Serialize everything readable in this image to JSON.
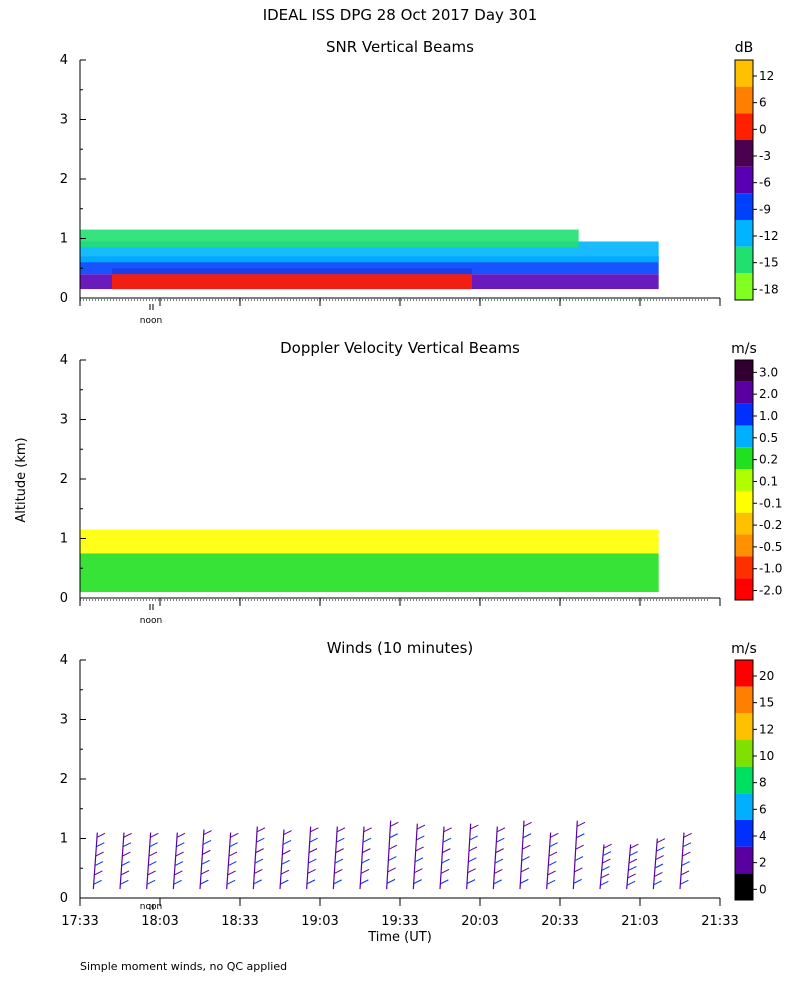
{
  "title": "IDEAL ISS DPG  28 Oct 2017 Day 301",
  "ylabel": "Altitude (km)",
  "xlabel": "Time (UT)",
  "footnote": "Simple moment winds, no QC applied",
  "noon_label": "noon",
  "chart_data": [
    {
      "type": "heatmap",
      "title": "SNR Vertical Beams",
      "unit": "dB",
      "y_ticks": [
        "0",
        "1",
        "2",
        "3",
        "4"
      ],
      "ylim": [
        0,
        4
      ],
      "colorbar": {
        "tick_labels": [
          "12",
          "6",
          "0",
          "-3",
          "-6",
          "-9",
          "-12",
          "-15",
          "-18"
        ],
        "colors": [
          "#ffc000",
          "#ff8000",
          "#ff2000",
          "#4b0050",
          "#5a00b4",
          "#0040ff",
          "#00b4ff",
          "#20e070",
          "#80ff20"
        ]
      },
      "regions": [
        {
          "t0": "17:33",
          "t1": "21:10",
          "alt0": 0.15,
          "alt1": 0.4,
          "value": "-6"
        },
        {
          "t0": "17:45",
          "t1": "20:00",
          "alt0": 0.15,
          "alt1": 0.5,
          "value": "0"
        },
        {
          "t0": "17:33",
          "t1": "21:10",
          "alt0": 0.4,
          "alt1": 0.7,
          "value": "-9"
        },
        {
          "t0": "17:33",
          "t1": "21:10",
          "alt0": 0.6,
          "alt1": 0.95,
          "value": "-12"
        },
        {
          "t0": "17:33",
          "t1": "20:40",
          "alt0": 0.85,
          "alt1": 1.15,
          "value": "-15"
        }
      ]
    },
    {
      "type": "heatmap",
      "title": "Doppler Velocity Vertical Beams",
      "unit": "m/s",
      "y_ticks": [
        "0",
        "1",
        "2",
        "3",
        "4"
      ],
      "ylim": [
        0,
        4
      ],
      "colorbar": {
        "tick_labels": [
          "3.0",
          "2.0",
          "1.0",
          "0.5",
          "0.2",
          "0.1",
          "-0.1",
          "-0.2",
          "-0.5",
          "-1.0",
          "-2.0"
        ],
        "colors": [
          "#300030",
          "#5a00a0",
          "#0030ff",
          "#00b0ff",
          "#20e020",
          "#b0ff00",
          "#ffff00",
          "#ffc000",
          "#ff9000",
          "#ff3000",
          "#ff0000"
        ]
      },
      "regions": [
        {
          "t0": "17:33",
          "t1": "21:10",
          "alt0": 0.1,
          "alt1": 0.75,
          "value": "0.2"
        },
        {
          "t0": "17:33",
          "t1": "21:10",
          "alt0": 0.75,
          "alt1": 1.15,
          "value": "-0.1"
        }
      ]
    },
    {
      "type": "barbs",
      "title": "Winds (10 minutes)",
      "unit": "m/s",
      "y_ticks": [
        "0",
        "1",
        "2",
        "3",
        "4"
      ],
      "ylim": [
        0,
        4
      ],
      "x_ticks": [
        "17:33",
        "18:03",
        "18:33",
        "19:03",
        "19:33",
        "20:03",
        "20:33",
        "21:03",
        "21:33"
      ],
      "colorbar": {
        "tick_labels": [
          "20",
          "15",
          "12",
          "10",
          "8",
          "6",
          "4",
          "2",
          "0"
        ],
        "colors": [
          "#ff0000",
          "#ff8000",
          "#ffc000",
          "#80e000",
          "#00e060",
          "#00b0ff",
          "#0030ff",
          "#5a00a0",
          "#000000"
        ]
      },
      "profile_times": [
        "17:38",
        "17:48",
        "17:58",
        "18:08",
        "18:18",
        "18:28",
        "18:38",
        "18:48",
        "18:58",
        "19:08",
        "19:18",
        "19:28",
        "19:38",
        "19:48",
        "19:58",
        "20:08",
        "20:18",
        "20:28",
        "20:38",
        "20:48",
        "20:58",
        "21:08",
        "21:18"
      ],
      "profile_tops_km": [
        1.1,
        1.1,
        1.1,
        1.1,
        1.15,
        1.1,
        1.2,
        1.15,
        1.2,
        1.2,
        1.2,
        1.3,
        1.25,
        1.2,
        1.25,
        1.2,
        1.3,
        1.1,
        1.3,
        0.9,
        0.9,
        1.0,
        1.1
      ]
    }
  ]
}
